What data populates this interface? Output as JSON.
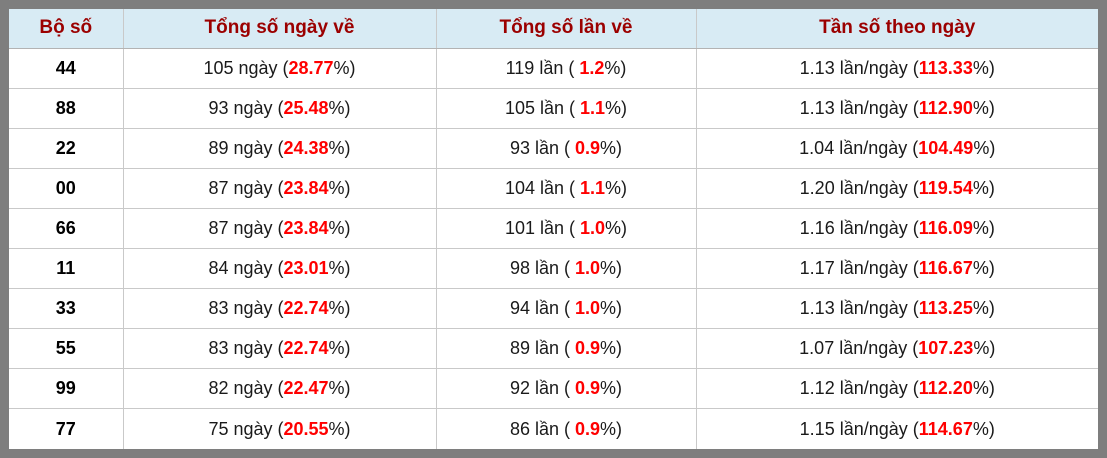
{
  "colors": {
    "frame_border": "#7e7e7e",
    "header_bg": "#d8ebf4",
    "header_text": "#9b0000",
    "highlight_red": "#ff0000"
  },
  "table": {
    "headers": [
      "Bộ số",
      "Tổng số ngày về",
      "Tổng số lần về",
      "Tần số theo ngày"
    ],
    "rows": [
      {
        "pair": "44",
        "days_prefix": "105 ngày (",
        "days_pct": "28.77",
        "days_suffix": "%)",
        "times_prefix": "119 lần ( ",
        "times_pct": "1.2",
        "times_suffix": "%)",
        "freq_prefix": "1.13 lần/ngày (",
        "freq_pct": "113.33",
        "freq_suffix": "%)"
      },
      {
        "pair": "88",
        "days_prefix": "93 ngày (",
        "days_pct": "25.48",
        "days_suffix": "%)",
        "times_prefix": "105 lần ( ",
        "times_pct": "1.1",
        "times_suffix": "%)",
        "freq_prefix": "1.13 lần/ngày (",
        "freq_pct": "112.90",
        "freq_suffix": "%)"
      },
      {
        "pair": "22",
        "days_prefix": "89 ngày (",
        "days_pct": "24.38",
        "days_suffix": "%)",
        "times_prefix": "93 lần ( ",
        "times_pct": "0.9",
        "times_suffix": "%)",
        "freq_prefix": "1.04 lần/ngày (",
        "freq_pct": "104.49",
        "freq_suffix": "%)"
      },
      {
        "pair": "00",
        "days_prefix": "87 ngày (",
        "days_pct": "23.84",
        "days_suffix": "%)",
        "times_prefix": "104 lần ( ",
        "times_pct": "1.1",
        "times_suffix": "%)",
        "freq_prefix": "1.20 lần/ngày (",
        "freq_pct": "119.54",
        "freq_suffix": "%)"
      },
      {
        "pair": "66",
        "days_prefix": "87 ngày (",
        "days_pct": "23.84",
        "days_suffix": "%)",
        "times_prefix": "101 lần ( ",
        "times_pct": "1.0",
        "times_suffix": "%)",
        "freq_prefix": "1.16 lần/ngày (",
        "freq_pct": "116.09",
        "freq_suffix": "%)"
      },
      {
        "pair": "11",
        "days_prefix": "84 ngày (",
        "days_pct": "23.01",
        "days_suffix": "%)",
        "times_prefix": "98 lần ( ",
        "times_pct": "1.0",
        "times_suffix": "%)",
        "freq_prefix": "1.17 lần/ngày (",
        "freq_pct": "116.67",
        "freq_suffix": "%)"
      },
      {
        "pair": "33",
        "days_prefix": "83 ngày (",
        "days_pct": "22.74",
        "days_suffix": "%)",
        "times_prefix": "94 lần ( ",
        "times_pct": "1.0",
        "times_suffix": "%)",
        "freq_prefix": "1.13 lần/ngày (",
        "freq_pct": "113.25",
        "freq_suffix": "%)"
      },
      {
        "pair": "55",
        "days_prefix": "83 ngày (",
        "days_pct": "22.74",
        "days_suffix": "%)",
        "times_prefix": "89 lần ( ",
        "times_pct": "0.9",
        "times_suffix": "%)",
        "freq_prefix": "1.07 lần/ngày (",
        "freq_pct": "107.23",
        "freq_suffix": "%)"
      },
      {
        "pair": "99",
        "days_prefix": "82 ngày (",
        "days_pct": "22.47",
        "days_suffix": "%)",
        "times_prefix": "92 lần ( ",
        "times_pct": "0.9",
        "times_suffix": "%)",
        "freq_prefix": "1.12 lần/ngày (",
        "freq_pct": "112.20",
        "freq_suffix": "%)"
      },
      {
        "pair": "77",
        "days_prefix": "75 ngày (",
        "days_pct": "20.55",
        "days_suffix": "%)",
        "times_prefix": "86 lần ( ",
        "times_pct": "0.9",
        "times_suffix": "%)",
        "freq_prefix": "1.15 lần/ngày (",
        "freq_pct": "114.67",
        "freq_suffix": "%)"
      }
    ]
  }
}
